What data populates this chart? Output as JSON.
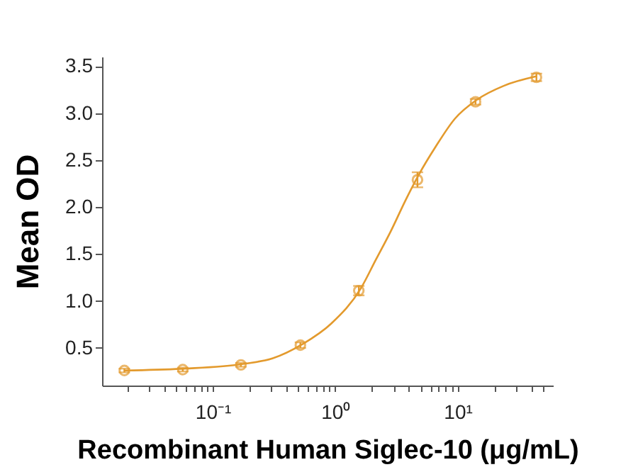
{
  "chart_data": {
    "type": "scatter",
    "xlabel": "Recombinant Human Siglec-10 (μg/mL)",
    "ylabel": "Mean OD",
    "log": "x",
    "grid": false,
    "xlim": [
      0.0125,
      60
    ],
    "ylim": [
      0.1,
      3.6
    ],
    "xticks": [
      {
        "value": 0.02,
        "label": null
      },
      {
        "value": 0.03,
        "label": null
      },
      {
        "value": 0.04,
        "label": null
      },
      {
        "value": 0.05,
        "label": null
      },
      {
        "value": 0.06,
        "label": null
      },
      {
        "value": 0.07,
        "label": null
      },
      {
        "value": 0.08,
        "label": null
      },
      {
        "value": 0.09,
        "label": null
      },
      {
        "value": 0.1,
        "label": "10⁻¹"
      },
      {
        "value": 0.2,
        "label": null
      },
      {
        "value": 0.3,
        "label": null
      },
      {
        "value": 0.4,
        "label": null
      },
      {
        "value": 0.5,
        "label": null
      },
      {
        "value": 0.6,
        "label": null
      },
      {
        "value": 0.7,
        "label": null
      },
      {
        "value": 0.8,
        "label": null
      },
      {
        "value": 0.9,
        "label": null
      },
      {
        "value": 1,
        "label": "10⁰"
      },
      {
        "value": 2,
        "label": null
      },
      {
        "value": 3,
        "label": null
      },
      {
        "value": 4,
        "label": null
      },
      {
        "value": 5,
        "label": null
      },
      {
        "value": 6,
        "label": null
      },
      {
        "value": 7,
        "label": null
      },
      {
        "value": 8,
        "label": null
      },
      {
        "value": 9,
        "label": null
      },
      {
        "value": 10,
        "label": "10¹"
      },
      {
        "value": 20,
        "label": null
      },
      {
        "value": 30,
        "label": null
      },
      {
        "value": 40,
        "label": null
      },
      {
        "value": 50,
        "label": null
      }
    ],
    "yticks": [
      0.5,
      {
        "value": 1,
        "label": "1.0"
      },
      1.5,
      {
        "value": 2,
        "label": "2.0"
      },
      2.5,
      {
        "value": 3,
        "label": "3.0"
      },
      3.5
    ],
    "series": [
      {
        "color": "#e39a2d",
        "marker": "circle",
        "x": [
          0.019,
          0.057,
          0.17,
          0.52,
          1.56,
          4.7,
          14,
          44
        ],
        "values": [
          0.26,
          0.27,
          0.32,
          0.53,
          1.11,
          2.29,
          3.12,
          3.38
        ],
        "errors": [
          0.02,
          0.02,
          0.02,
          0.03,
          0.05,
          0.08,
          0.03,
          0.04
        ]
      },
      {
        "type": "line",
        "color": "#e39a2d",
        "x": [
          0.019,
          0.059,
          0.178,
          0.31,
          0.54,
          0.93,
          1.63,
          2.15,
          2.84,
          3.75,
          4.8,
          6.6,
          9.5,
          14.3,
          23.8,
          43.6
        ],
        "values": [
          0.26,
          0.28,
          0.33,
          0.39,
          0.54,
          0.76,
          1.14,
          1.44,
          1.74,
          2.07,
          2.34,
          2.64,
          2.94,
          3.14,
          3.29,
          3.39
        ]
      }
    ]
  }
}
